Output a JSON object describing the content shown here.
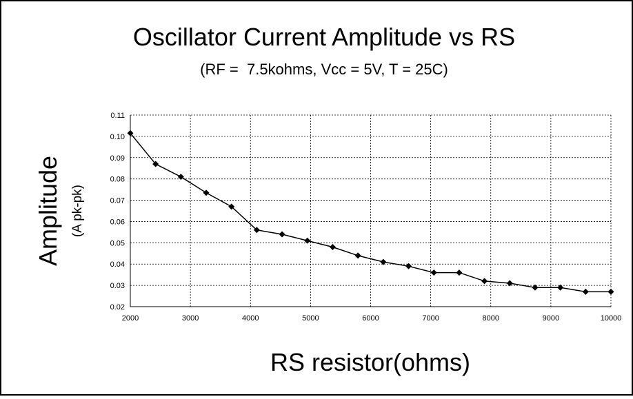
{
  "chart_data": {
    "type": "line",
    "title": "Oscillator Current Amplitude vs RS",
    "subtitle": "(RF =  7.5kohms, Vcc = 5V, T = 25C)",
    "y_label": "Amplitude",
    "y_unit_label": "(A pk-pk)",
    "x_label": "RS resistor(ohms)",
    "x": [
      2000,
      2421,
      2842,
      3263,
      3684,
      4105,
      4526,
      4947,
      5368,
      5789,
      6211,
      6632,
      7053,
      7474,
      7895,
      8316,
      8737,
      9158,
      9579,
      10000
    ],
    "series": [
      {
        "color": "#000000",
        "values": [
          0.1015,
          0.087,
          0.081,
          0.0735,
          0.067,
          0.056,
          0.054,
          0.051,
          0.048,
          0.044,
          0.041,
          0.039,
          0.036,
          0.036,
          0.032,
          0.031,
          0.029,
          0.029,
          0.027,
          0.027
        ]
      }
    ],
    "xlim": [
      2000,
      10000
    ],
    "xticks": [
      2000,
      3000,
      4000,
      5000,
      6000,
      7000,
      8000,
      9000,
      10000
    ],
    "ylim": [
      0.02,
      0.11
    ],
    "yticks": [
      0.02,
      0.03,
      0.04,
      0.05,
      0.06,
      0.07,
      0.08,
      0.09,
      {
        "value": 0.1,
        "label": "0.10"
      },
      0.11
    ],
    "grid": true
  }
}
